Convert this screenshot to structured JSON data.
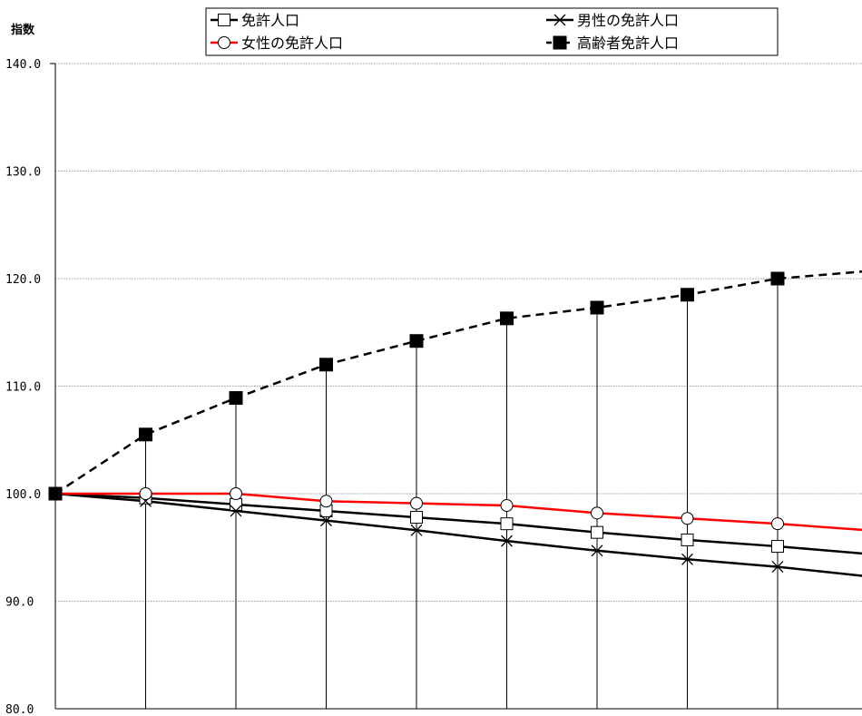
{
  "chart_data": {
    "type": "line",
    "ylabel": "指数",
    "ylim": [
      80,
      140
    ],
    "y_ticks": [
      "140.0",
      "130.0",
      "120.0",
      "110.0",
      "100.0",
      "90.0",
      "80.0"
    ],
    "grid": true,
    "legend_position": "top",
    "x_count": 10,
    "series": [
      {
        "name": "免許人口",
        "color": "#000000",
        "marker": "square-open",
        "dash": "solid",
        "values": [
          100.0,
          99.6,
          99.0,
          98.4,
          97.8,
          97.2,
          96.4,
          95.7,
          95.1,
          94.4
        ]
      },
      {
        "name": "男性の免許人口",
        "color": "#000000",
        "marker": "cross",
        "dash": "solid",
        "values": [
          100.0,
          99.3,
          98.4,
          97.5,
          96.6,
          95.6,
          94.7,
          93.9,
          93.2,
          92.3
        ]
      },
      {
        "name": "女性の免許人口",
        "color": "#ff0000",
        "marker": "circle-open",
        "dash": "solid",
        "values": [
          100.0,
          100.0,
          100.0,
          99.3,
          99.1,
          98.9,
          98.2,
          97.7,
          97.2,
          96.6
        ]
      },
      {
        "name": "高齢者免許人口",
        "color": "#000000",
        "marker": "square-filled",
        "dash": "dashed",
        "values": [
          100.0,
          105.5,
          108.9,
          112.0,
          114.2,
          116.3,
          117.3,
          118.5,
          120.0,
          120.7
        ]
      }
    ]
  }
}
